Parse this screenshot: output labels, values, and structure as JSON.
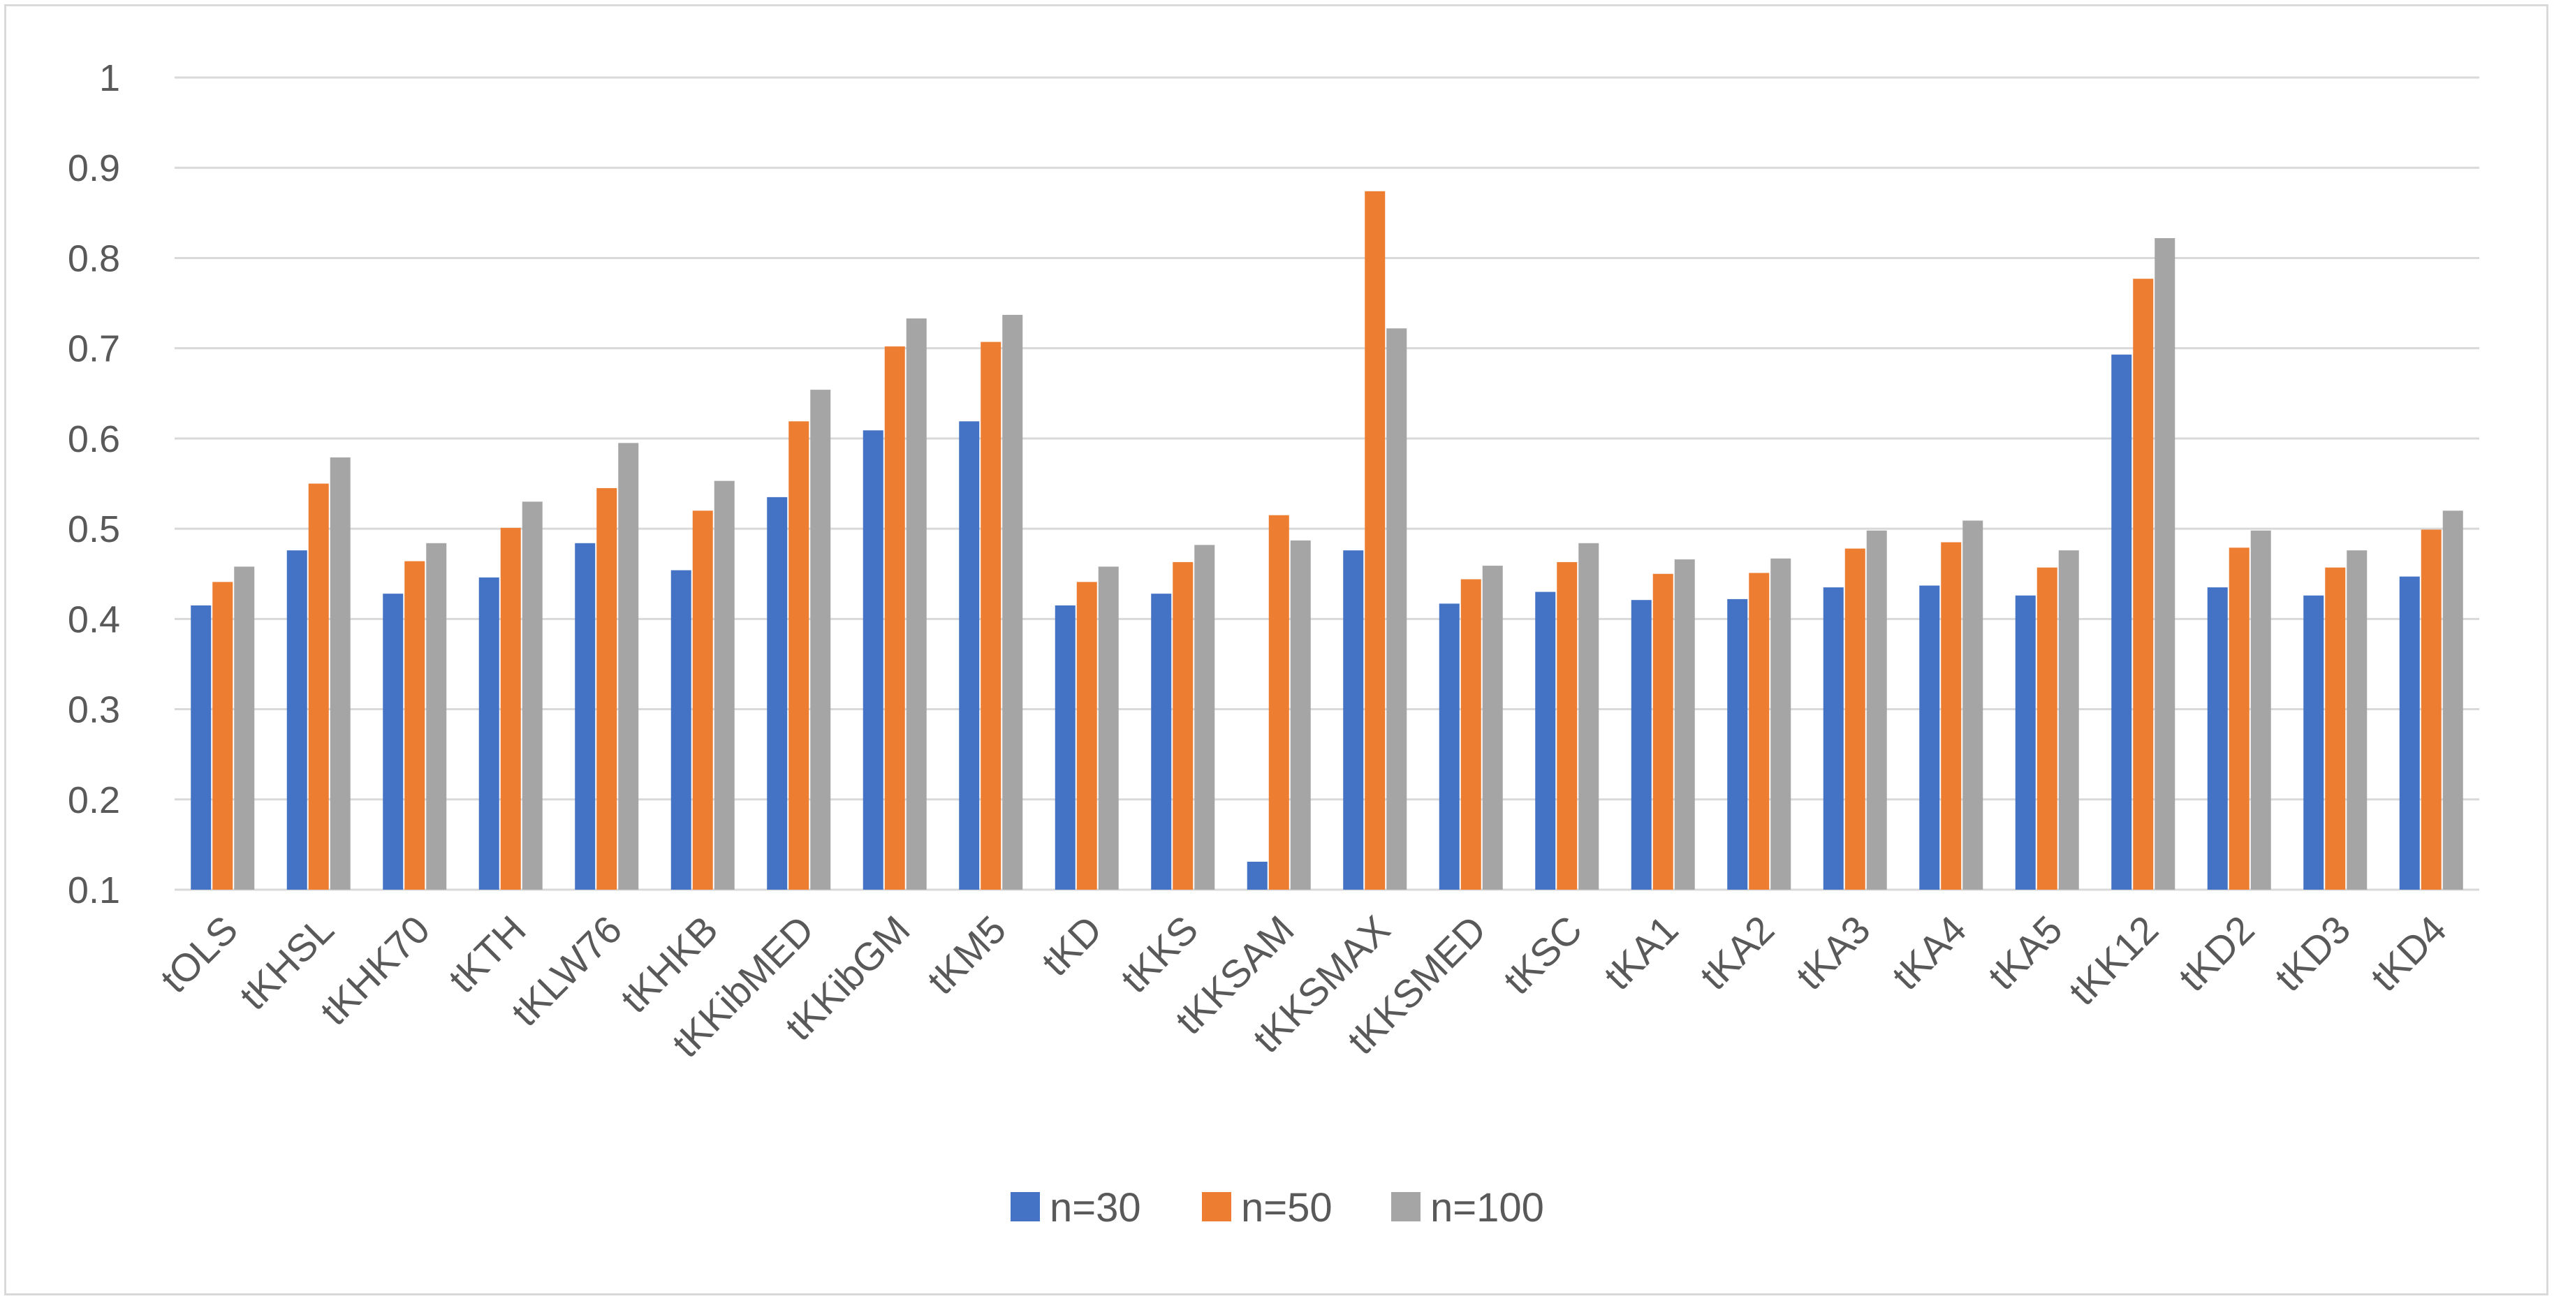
{
  "chart_data": {
    "type": "bar",
    "title": "",
    "xlabel": "",
    "ylabel": "",
    "ylim": [
      0.1,
      1.0
    ],
    "yticks": [
      "0.1",
      "0.2",
      "0.3",
      "0.4",
      "0.5",
      "0.6",
      "0.7",
      "0.8",
      "0.9",
      "1"
    ],
    "grid": true,
    "legend_position": "bottom",
    "categories": [
      "tOLS",
      "tKHSL",
      "tKHK70",
      "tKTH",
      "tKLW76",
      "tKHKB",
      "tKKibMED",
      "tKKibGM",
      "tKM5",
      "tKD",
      "tKKS",
      "tKKSAM",
      "tKKSMAX",
      "tKKSMED",
      "tKSC",
      "tKA1",
      "tKA2",
      "tKA3",
      "tKA4",
      "tKA5",
      "tKK12",
      "tKD2",
      "tKD3",
      "tKD4"
    ],
    "series": [
      {
        "name": "n=30",
        "color": "#4472c4",
        "values": [
          0.415,
          0.476,
          0.428,
          0.446,
          0.484,
          0.454,
          0.535,
          0.609,
          0.619,
          0.415,
          0.428,
          0.131,
          0.476,
          0.417,
          0.43,
          0.421,
          0.422,
          0.435,
          0.437,
          0.426,
          0.693,
          0.435,
          0.426,
          0.447
        ]
      },
      {
        "name": "n=50",
        "color": "#ed7d31",
        "values": [
          0.441,
          0.55,
          0.464,
          0.501,
          0.545,
          0.52,
          0.619,
          0.702,
          0.707,
          0.441,
          0.463,
          0.515,
          0.874,
          0.444,
          0.463,
          0.45,
          0.451,
          0.478,
          0.485,
          0.457,
          0.777,
          0.479,
          0.457,
          0.499
        ]
      },
      {
        "name": "n=100",
        "color": "#a5a5a5",
        "values": [
          0.458,
          0.579,
          0.484,
          0.53,
          0.595,
          0.553,
          0.654,
          0.733,
          0.737,
          0.458,
          0.482,
          0.487,
          0.722,
          0.459,
          0.484,
          0.466,
          0.467,
          0.498,
          0.509,
          0.476,
          0.822,
          0.498,
          0.476,
          0.52
        ]
      }
    ]
  }
}
